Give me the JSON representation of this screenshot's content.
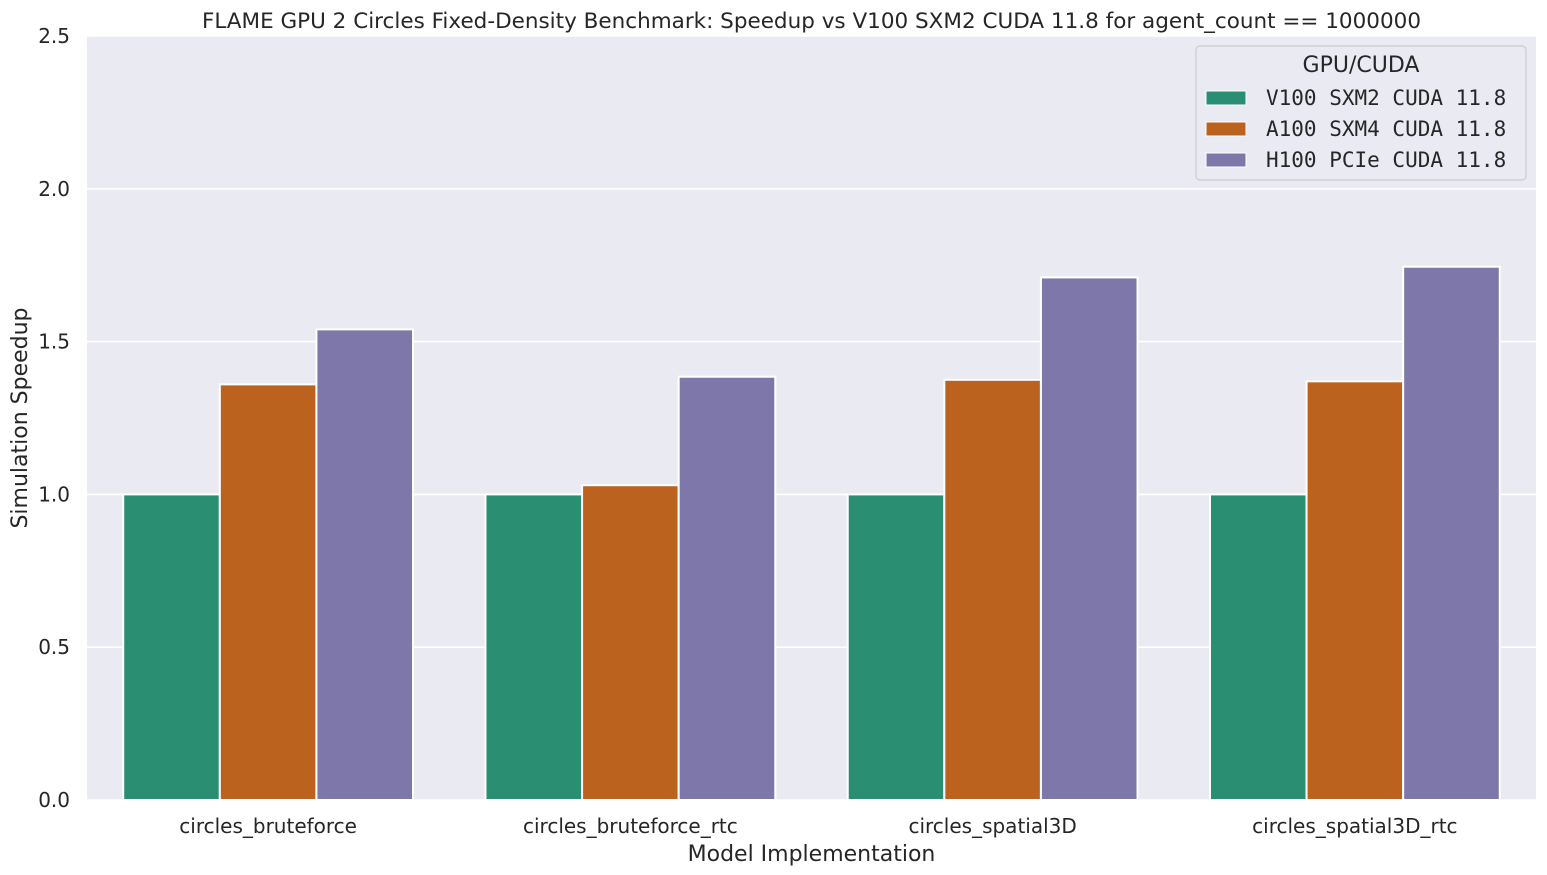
{
  "chart_data": {
    "type": "bar",
    "title": "FLAME GPU 2 Circles Fixed-Density Benchmark: Speedup vs V100 SXM2 CUDA 11.8 for agent_count == 1000000",
    "xlabel": "Model Implementation",
    "ylabel": "Simulation Speedup",
    "ylim": [
      0,
      2.5
    ],
    "yticks": [
      "0.0",
      "0.5",
      "1.0",
      "1.5",
      "2.0",
      "2.5"
    ],
    "grid": true,
    "categories": [
      "circles_bruteforce",
      "circles_bruteforce_rtc",
      "circles_spatial3D",
      "circles_spatial3D_rtc"
    ],
    "legend": {
      "title": "GPU/CUDA",
      "position": "top-right"
    },
    "series": [
      {
        "name": "V100 SXM2 CUDA 11.8",
        "color": "#2a8f72",
        "values": [
          1.0,
          1.0,
          1.0,
          1.0
        ]
      },
      {
        "name": "A100 SXM4 CUDA 11.8",
        "color": "#bc621f",
        "values": [
          1.36,
          1.03,
          1.375,
          1.37
        ]
      },
      {
        "name": "H100 PCIe CUDA 11.8",
        "color": "#7e78aa",
        "values": [
          1.54,
          1.385,
          1.71,
          1.745
        ]
      }
    ]
  }
}
